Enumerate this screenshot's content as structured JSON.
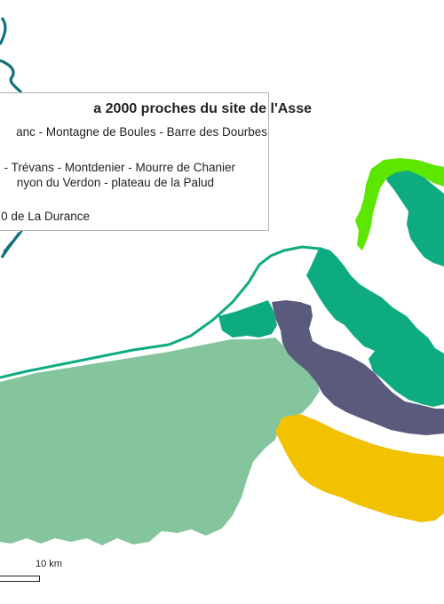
{
  "legend": {
    "title": "a 2000 proches du site de l'Asse",
    "items": [
      {
        "label": "anc - Montagne de Boules - Barre des Dourbes",
        "color": "#3cb185"
      },
      {
        "label": "- Trévans - Montdenier - Mourre de Chanier",
        "color": "#5a5a7d"
      },
      {
        "label": "nyon du Verdon - plateau de la Palud",
        "color": "#f2c200"
      },
      {
        "label": "0 de La Durance",
        "color": "#1a6d7a"
      }
    ]
  },
  "scale": {
    "label": "10 km"
  },
  "colors": {
    "light_green": "#84c59e",
    "teal_green": "#0fab80",
    "lime": "#5ce600",
    "slate": "#5a5a7d",
    "yellow": "#f2c200",
    "river": "#13717f"
  }
}
